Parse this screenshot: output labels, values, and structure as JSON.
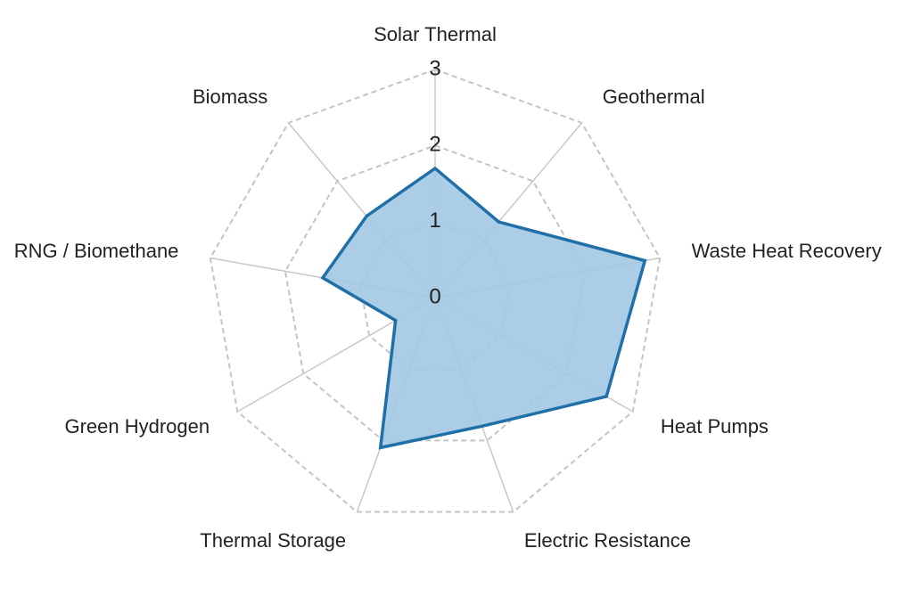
{
  "chart_data": {
    "type": "radar",
    "categories": [
      "Solar Thermal",
      "Geothermal",
      "Waste Heat Recovery",
      "Heat Pumps",
      "Electric Resistance",
      "Thermal Storage",
      "Green Hydrogen",
      "RNG / Biomethane",
      "Biomass"
    ],
    "values": [
      1.7,
      1.3,
      2.8,
      2.6,
      1.8,
      2.1,
      0.6,
      1.5,
      1.4
    ],
    "color": "#1f6fa8",
    "fill": "#a2c8e2",
    "rlim": [
      0,
      3
    ],
    "rticks": [
      0,
      1,
      2,
      3
    ],
    "grid": true
  }
}
